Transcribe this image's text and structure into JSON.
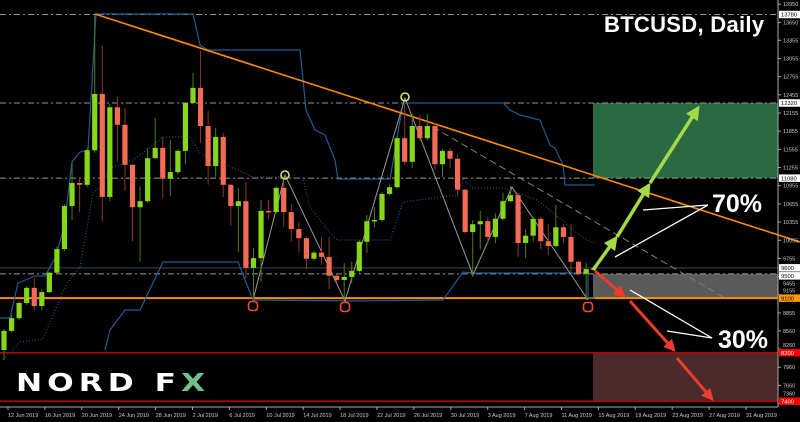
{
  "chart_data": {
    "type": "candlestick",
    "title": "BTCUSD, Daily",
    "colors": {
      "up": "#86d61a",
      "down": "#f36a55",
      "background": "#000000",
      "trendline": "#ff8c00",
      "support": "#ff8c00",
      "target_low": "#c00000",
      "band": "#1f5a96",
      "bull_zone": "#2a6a40",
      "bear_zone": "#4a2a2a",
      "neutral_zone": "#5a5a5a",
      "bull_arrow": "#a6d84a",
      "bear_arrow": "#f03c2c"
    },
    "ylim": [
      7340,
      14020
    ],
    "y_tick_labels": [
      "13950",
      "13650",
      "13355",
      "13055",
      "12755",
      "12455",
      "12155",
      "11855",
      "11555",
      "11255",
      "10955",
      "10655",
      "10355",
      "10055",
      "9755",
      "9455",
      "9155",
      "8855",
      "8560",
      "8260",
      "7960",
      "7660",
      "7360"
    ],
    "x_tick_labels": [
      "12 Jun 2019",
      "16 Jun 2019",
      "20 Jun 2019",
      "24 Jun 2019",
      "28 Jun 2019",
      "2 Jul 2019",
      "6 Jul 2019",
      "10 Jul 2019",
      "14 Jul 2019",
      "18 Jul 2019",
      "22 Jul 2019",
      "26 Jul 2019",
      "30 Jul 2019",
      "3 Aug 2019",
      "7 Aug 2019",
      "11 Aug 2019",
      "15 Aug 2019",
      "19 Aug 2019",
      "23 Aug 2019",
      "27 Aug 2019",
      "31 Aug 2019"
    ],
    "price_labels": [
      {
        "value": "13780",
        "price": 13780,
        "style": "white"
      },
      {
        "value": "12320",
        "price": 12320,
        "style": "white"
      },
      {
        "value": "11080",
        "price": 11080,
        "style": "white"
      },
      {
        "value": "9600",
        "price": 9600,
        "style": "white"
      },
      {
        "value": "9500",
        "price": 9500,
        "style": "white"
      },
      {
        "value": "9100",
        "price": 9100,
        "style": "orange"
      },
      {
        "value": "8200",
        "price": 8200,
        "style": "red"
      },
      {
        "value": "7400",
        "price": 7400,
        "style": "red"
      }
    ],
    "horizontal_levels": {
      "dashdot": [
        13780,
        12320,
        11080,
        9500
      ],
      "current": 9600,
      "support": 9100,
      "targets": [
        8200,
        7400
      ]
    },
    "zones": [
      {
        "name": "bull-target-zone",
        "from": 11080,
        "to": 12320
      },
      {
        "name": "neutral-zone",
        "from": 9100,
        "to": 9500
      },
      {
        "name": "bear-target-zone",
        "from": 7400,
        "to": 8200
      }
    ],
    "ohlc": [
      [
        8245,
        8590,
        8080,
        8560
      ],
      [
        8560,
        8820,
        8530,
        8770
      ],
      [
        8770,
        9050,
        8740,
        9020
      ],
      [
        9020,
        9300,
        8990,
        9270
      ],
      [
        9270,
        9430,
        8900,
        8970
      ],
      [
        8970,
        9250,
        8900,
        9200
      ],
      [
        9200,
        9540,
        9180,
        9520
      ],
      [
        9520,
        9950,
        9500,
        9910
      ],
      [
        9910,
        10650,
        9880,
        10620
      ],
      [
        10620,
        11350,
        10390,
        11000
      ],
      [
        11000,
        11100,
        10520,
        10970
      ],
      [
        10970,
        11580,
        10930,
        11540
      ],
      [
        11540,
        13780,
        11500,
        12470
      ],
      [
        12470,
        13260,
        10360,
        10770
      ],
      [
        10770,
        12300,
        10700,
        12250
      ],
      [
        12250,
        12420,
        11350,
        11960
      ],
      [
        11960,
        12240,
        10870,
        11300
      ],
      [
        11300,
        11310,
        10040,
        10600
      ],
      [
        10600,
        10940,
        9700,
        10700
      ],
      [
        10700,
        11580,
        10680,
        11410
      ],
      [
        11410,
        12070,
        11400,
        11580
      ],
      [
        11580,
        11760,
        10750,
        11070
      ],
      [
        11070,
        11710,
        10790,
        11180
      ],
      [
        11180,
        11560,
        11150,
        11530
      ],
      [
        11530,
        12330,
        11310,
        12320
      ],
      [
        12320,
        12820,
        12300,
        12570
      ],
      [
        12570,
        13180,
        11660,
        11940
      ],
      [
        11940,
        12190,
        10970,
        11280
      ],
      [
        11280,
        11910,
        11100,
        11760
      ],
      [
        11760,
        11830,
        10770,
        10970
      ],
      [
        10970,
        10980,
        10290,
        10620
      ],
      [
        10620,
        10920,
        9860,
        10700
      ],
      [
        10700,
        11020,
        9430,
        9600
      ],
      [
        9600,
        9930,
        9070,
        9760
      ],
      [
        9760,
        10720,
        9370,
        10540
      ],
      [
        10540,
        10720,
        10400,
        10520
      ],
      [
        10520,
        10950,
        10500,
        10920
      ],
      [
        10920,
        11030,
        10270,
        10520
      ],
      [
        10520,
        10650,
        10030,
        10240
      ],
      [
        10240,
        10360,
        9850,
        10090
      ],
      [
        10090,
        10120,
        9570,
        9750
      ],
      [
        9750,
        9880,
        9720,
        9850
      ],
      [
        9850,
        10110,
        9650,
        9780
      ],
      [
        9780,
        10110,
        9250,
        9470
      ],
      [
        9470,
        9490,
        9350,
        9400
      ],
      [
        9400,
        9680,
        9050,
        9450
      ],
      [
        9450,
        9700,
        9350,
        9550
      ],
      [
        9550,
        10060,
        9520,
        10030
      ],
      [
        10030,
        10470,
        9850,
        10370
      ],
      [
        10370,
        10600,
        10270,
        10390
      ],
      [
        10390,
        10850,
        10360,
        10820
      ],
      [
        10820,
        10970,
        10800,
        10930
      ],
      [
        10930,
        11780,
        10900,
        11740
      ],
      [
        11740,
        12320,
        11300,
        11350
      ],
      [
        11350,
        12150,
        11250,
        11940
      ],
      [
        11940,
        12120,
        11700,
        11740
      ],
      [
        11740,
        12140,
        11700,
        11940
      ],
      [
        11940,
        11990,
        11220,
        11310
      ],
      [
        11310,
        11560,
        11100,
        11530
      ],
      [
        11530,
        11580,
        11250,
        11400
      ],
      [
        11400,
        11460,
        10770,
        10890
      ],
      [
        10890,
        10900,
        10170,
        10190
      ],
      [
        10190,
        10390,
        9450,
        10320
      ],
      [
        10320,
        10540,
        9900,
        10370
      ],
      [
        10370,
        10440,
        10010,
        10110
      ],
      [
        10110,
        10500,
        10010,
        10410
      ],
      [
        10410,
        10840,
        10380,
        10700
      ],
      [
        10700,
        10950,
        10680,
        10800
      ],
      [
        10800,
        10830,
        9780,
        10010
      ],
      [
        10010,
        10230,
        9760,
        10130
      ],
      [
        10130,
        10440,
        10030,
        10410
      ],
      [
        10410,
        10440,
        9900,
        10040
      ],
      [
        10040,
        10320,
        9810,
        9960
      ],
      [
        9960,
        10640,
        9940,
        10270
      ],
      [
        10270,
        10320,
        10010,
        10110
      ],
      [
        10110,
        10320,
        9520,
        9700
      ],
      [
        9700,
        9720,
        9480,
        9500
      ],
      [
        9500,
        9680,
        9070,
        9580
      ],
      [
        9590,
        9620,
        9560,
        9570
      ]
    ],
    "annotations": {
      "bull_probability": "70%",
      "bear_probability": "30%"
    },
    "markers": {
      "swing_highs": [
        12,
        53
      ],
      "swing_lows": [
        33,
        45,
        77
      ]
    }
  },
  "brand": {
    "logo_text": "NORD FX",
    "logo_main": "NORD F",
    "logo_accent": "X"
  }
}
